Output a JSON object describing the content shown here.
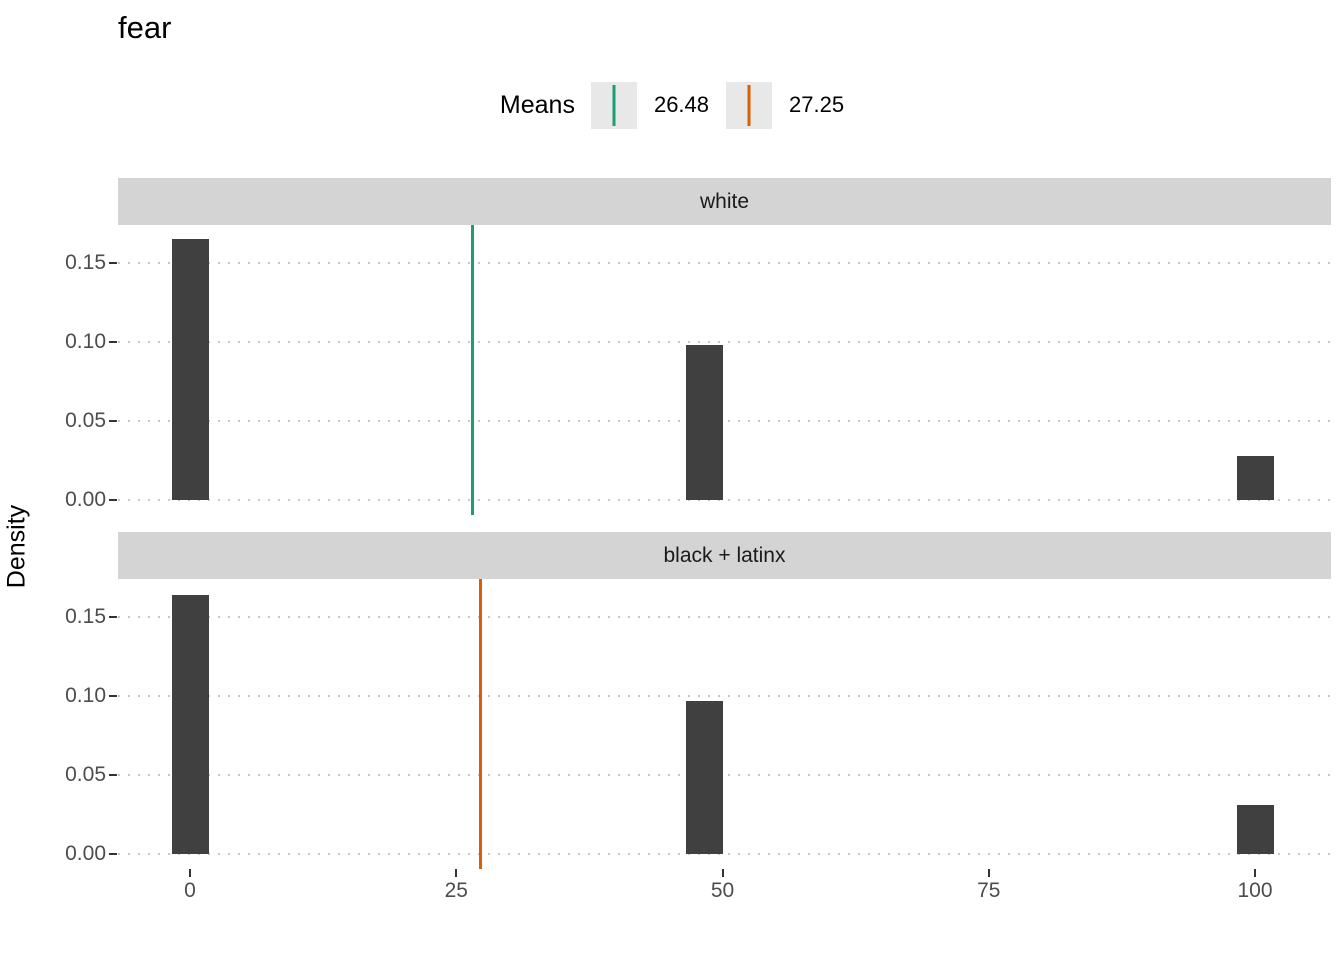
{
  "title": "fear",
  "legend": {
    "title": "Means",
    "items": [
      {
        "value": "26.48",
        "color": "#1B9E77"
      },
      {
        "value": "27.25",
        "color": "#D95F02"
      }
    ]
  },
  "colors": {
    "bar": "#404040",
    "mean_white": "#1B9E77",
    "mean_black_latinx": "#D95F02",
    "strip_background": "#d4d4d4",
    "legend_key_background": "#e8e8e8",
    "gridline": "#c6c6c6",
    "axis_text": "#4d4d4d"
  },
  "chart_data": {
    "type": "bar",
    "subtype": "faceted-histogram",
    "title": "fear",
    "xlabel": "",
    "ylabel": "Density",
    "x_ticks": [
      0,
      25,
      50,
      75,
      100
    ],
    "x_tick_labels": [
      "0",
      "25",
      "50",
      "75",
      "100"
    ],
    "y_ticks": [
      0.0,
      0.05,
      0.1,
      0.15
    ],
    "y_tick_labels": [
      "0.00",
      "0.05",
      "0.10",
      "0.15"
    ],
    "xlim": [
      -6.8,
      107.1
    ],
    "ylim": [
      0,
      0.174
    ],
    "bar_width": 3.47,
    "grid": "horizontal-dotted",
    "legend_position": "top",
    "facets": [
      {
        "label": "white",
        "mean": 26.48,
        "mean_color": "#1B9E77",
        "bars": [
          {
            "x": 0,
            "density": 0.165
          },
          {
            "x": 48.3,
            "density": 0.098
          },
          {
            "x": 100,
            "density": 0.028
          }
        ]
      },
      {
        "label": "black + latinx",
        "mean": 27.25,
        "mean_color": "#D95F02",
        "bars": [
          {
            "x": 0,
            "density": 0.164
          },
          {
            "x": 48.3,
            "density": 0.097
          },
          {
            "x": 100,
            "density": 0.031
          }
        ]
      }
    ]
  }
}
